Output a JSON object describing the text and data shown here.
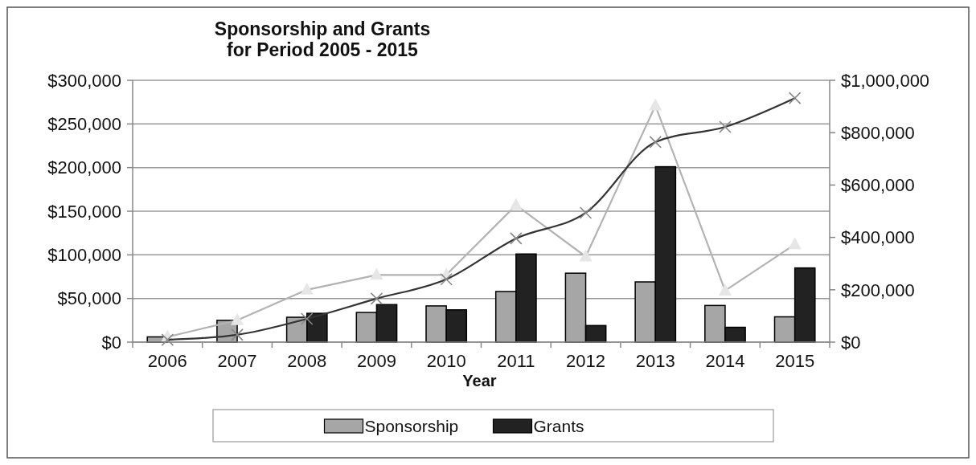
{
  "chart_data": {
    "type": "bar",
    "title": "Sponsorship and Grants\nfor Period 2005 - 2015",
    "xlabel": "Year",
    "categories": [
      "2006",
      "2007",
      "2008",
      "2009",
      "2010",
      "2011",
      "2012",
      "2013",
      "2014",
      "2015"
    ],
    "series": [
      {
        "name": "Sponsorship",
        "color": "#a6a6a6",
        "values": [
          6000,
          25000,
          28500,
          34000,
          41500,
          58000,
          79000,
          69000,
          42000,
          29000
        ]
      },
      {
        "name": "Grants",
        "color": "#222222",
        "values": [
          0,
          0,
          33000,
          43000,
          37000,
          101000,
          19000,
          201000,
          17000,
          85000
        ]
      },
      {
        "type": "line",
        "color": "#b3b3b3",
        "marker": "triangle",
        "values": [
          6000,
          25000,
          60000,
          77000,
          77000,
          157000,
          98000,
          271000,
          59000,
          112000
        ]
      },
      {
        "type": "line",
        "color": "#333333",
        "marker": "cross",
        "axis": "y2",
        "values": [
          9000,
          28000,
          89000,
          166000,
          240000,
          396000,
          494000,
          764000,
          822000,
          932000
        ]
      }
    ],
    "ylim": [
      0,
      300000
    ],
    "yticks": [
      {
        "value": 0,
        "label": "$0"
      },
      {
        "value": 50000,
        "label": "$50,000"
      },
      {
        "value": 100000,
        "label": "$100,000"
      },
      {
        "value": 150000,
        "label": "$150,000"
      },
      {
        "value": 200000,
        "label": "$200,000"
      },
      {
        "value": 250000,
        "label": "$250,000"
      },
      {
        "value": 300000,
        "label": "$300,000"
      }
    ],
    "y2lim": [
      0,
      1000000
    ],
    "y2ticks": [
      {
        "value": 0,
        "label": "$0"
      },
      {
        "value": 200000,
        "label": "$200,000"
      },
      {
        "value": 400000,
        "label": "$400,000"
      },
      {
        "value": 600000,
        "label": "$600,000"
      },
      {
        "value": 800000,
        "label": "$800,000"
      },
      {
        "value": 1000000,
        "label": "$1,000,000"
      }
    ],
    "grid": "y",
    "legend": "bottom"
  }
}
